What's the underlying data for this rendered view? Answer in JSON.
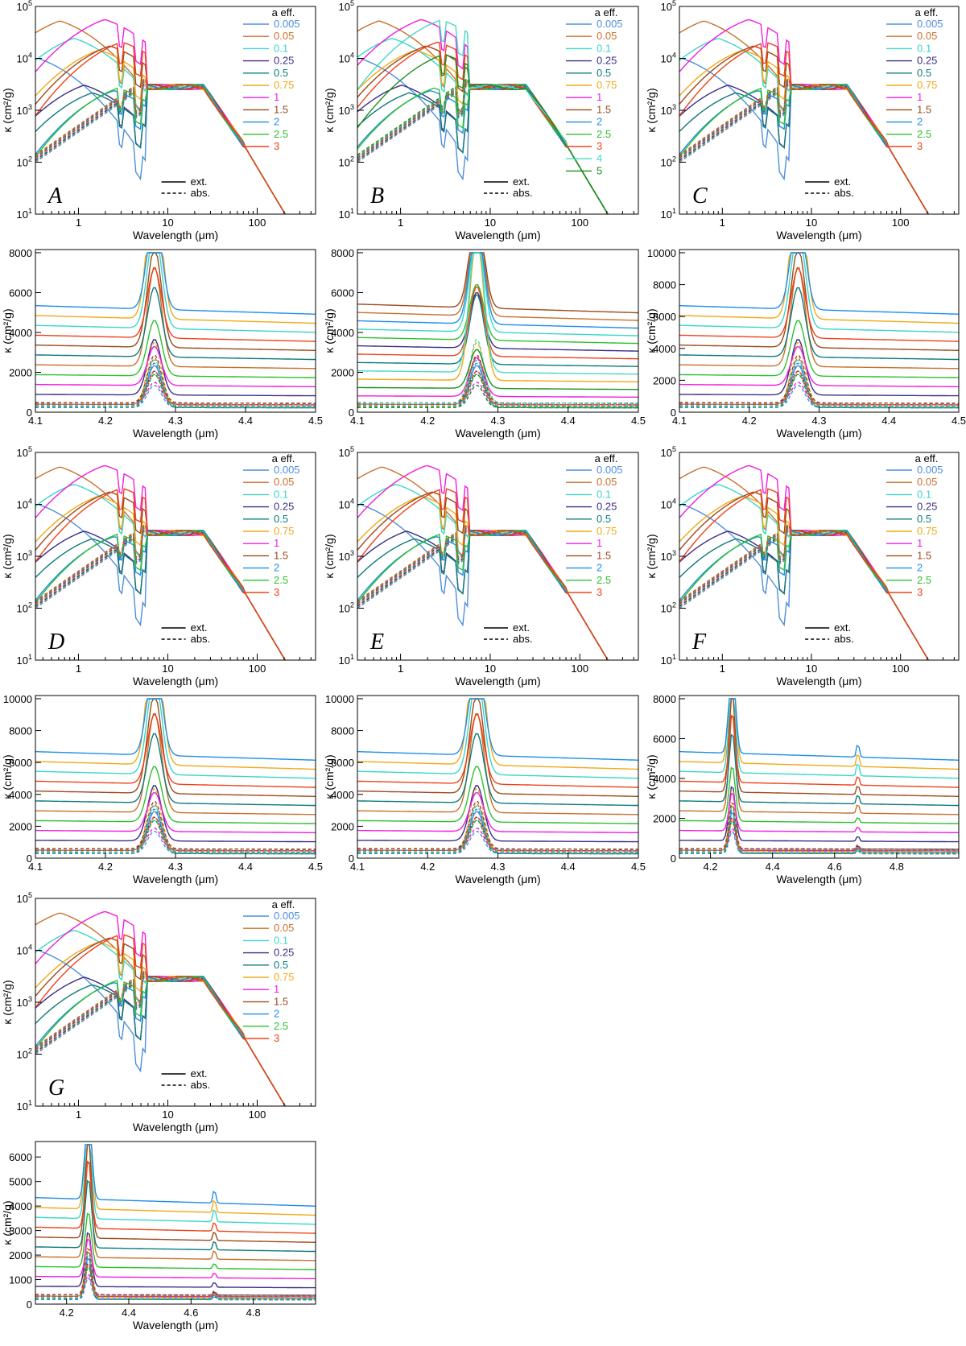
{
  "panels": [
    {
      "id": "A-log",
      "type": "log",
      "letter": "A",
      "xlabel": "Wavelength (μm)",
      "ylabel": "κ (cm²/g)",
      "legend_title": "a eff.",
      "sizes": [
        "0.005",
        "0.05",
        "0.1",
        "0.25",
        "0.5",
        "0.75",
        "1",
        "1.5",
        "2",
        "2.5",
        "3"
      ],
      "line_legend": [
        "ext.",
        "abs."
      ]
    },
    {
      "id": "B-log",
      "type": "log",
      "letter": "B",
      "xlabel": "Wavelength (μm)",
      "ylabel": "κ (cm²/g)",
      "legend_title": "a eff.",
      "sizes": [
        "0.005",
        "0.05",
        "0.1",
        "0.25",
        "0.5",
        "0.75",
        "1",
        "1.5",
        "2",
        "2.5",
        "3",
        "4",
        "5"
      ],
      "line_legend": [
        "ext.",
        "abs."
      ]
    },
    {
      "id": "C-log",
      "type": "log",
      "letter": "C",
      "xlabel": "Wavelength (μm)",
      "ylabel": "κ (cm²/g)",
      "legend_title": "a eff.",
      "sizes": [
        "0.005",
        "0.05",
        "0.1",
        "0.25",
        "0.5",
        "0.75",
        "1",
        "1.5",
        "2",
        "2.5",
        "3"
      ],
      "line_legend": [
        "ext.",
        "abs."
      ]
    },
    {
      "id": "A-zoom",
      "type": "zoom",
      "xlabel": "Wavelength (μm)",
      "ylabel": "κ (cm²/g)",
      "xmin": 4.1,
      "xmax": 4.5,
      "ymax": 8000,
      "xticks": [
        "4.1",
        "4.2",
        "4.3",
        "4.4",
        "4.5"
      ],
      "yticks": [
        "0",
        "2000",
        "4000",
        "6000",
        "8000"
      ]
    },
    {
      "id": "B-zoom",
      "type": "zoom",
      "xlabel": "Wavelength (μm)",
      "ylabel": "κ (cm²/g)",
      "xmin": 4.1,
      "xmax": 4.5,
      "ymax": 8000,
      "xticks": [
        "4.1",
        "4.2",
        "4.3",
        "4.4",
        "4.5"
      ],
      "yticks": [
        "0",
        "2000",
        "4000",
        "6000",
        "8000"
      ]
    },
    {
      "id": "C-zoom",
      "type": "zoom",
      "xlabel": "Wavelength (μm)",
      "ylabel": "κ (cm²/g)",
      "xmin": 4.1,
      "xmax": 4.5,
      "ymax": 10000,
      "xticks": [
        "4.1",
        "4.2",
        "4.3",
        "4.4",
        "4.5"
      ],
      "yticks": [
        "0",
        "2000",
        "4000",
        "6000",
        "8000",
        "10000"
      ]
    },
    {
      "id": "D-log",
      "type": "log",
      "letter": "D",
      "xlabel": "Wavelength (μm)",
      "ylabel": "κ (cm²/g)",
      "legend_title": "a eff.",
      "sizes": [
        "0.005",
        "0.05",
        "0.1",
        "0.25",
        "0.5",
        "0.75",
        "1",
        "1.5",
        "2",
        "2.5",
        "3"
      ],
      "line_legend": [
        "ext.",
        "abs."
      ]
    },
    {
      "id": "E-log",
      "type": "log",
      "letter": "E",
      "xlabel": "Wavelength (μm)",
      "ylabel": "κ (cm²/g)",
      "legend_title": "a eff.",
      "sizes": [
        "0.005",
        "0.05",
        "0.1",
        "0.25",
        "0.5",
        "0.75",
        "1",
        "1.5",
        "2",
        "2.5",
        "3"
      ],
      "line_legend": [
        "ext.",
        "abs."
      ]
    },
    {
      "id": "F-log",
      "type": "log",
      "letter": "F",
      "xlabel": "Wavelength (μm)",
      "ylabel": "κ (cm²/g)",
      "legend_title": "a eff.",
      "sizes": [
        "0.005",
        "0.05",
        "0.1",
        "0.25",
        "0.5",
        "0.75",
        "1",
        "1.5",
        "2",
        "2.5",
        "3"
      ],
      "line_legend": [
        "ext.",
        "abs."
      ]
    },
    {
      "id": "D-zoom",
      "type": "zoom",
      "xlabel": "Wavelength (μm)",
      "ylabel": "κ (cm²/g)",
      "xmin": 4.1,
      "xmax": 4.5,
      "ymax": 10000,
      "xticks": [
        "4.1",
        "4.2",
        "4.3",
        "4.4",
        "4.5"
      ],
      "yticks": [
        "0",
        "2000",
        "4000",
        "6000",
        "8000",
        "10000"
      ]
    },
    {
      "id": "E-zoom",
      "type": "zoom",
      "xlabel": "Wavelength (μm)",
      "ylabel": "κ (cm²/g)",
      "xmin": 4.1,
      "xmax": 4.5,
      "ymax": 10000,
      "xticks": [
        "4.1",
        "4.2",
        "4.3",
        "4.4",
        "4.5"
      ],
      "yticks": [
        "0",
        "2000",
        "4000",
        "6000",
        "8000",
        "10000"
      ]
    },
    {
      "id": "F-zoom",
      "type": "zoom",
      "xlabel": "Wavelength (μm)",
      "ylabel": "κ (cm²/g)",
      "xmin": 4.1,
      "xmax": 5.0,
      "ymax": 8000,
      "xticks": [
        "4.2",
        "4.4",
        "4.6",
        "4.8"
      ],
      "yticks": [
        "0",
        "2000",
        "4000",
        "6000",
        "8000"
      ]
    },
    {
      "id": "G-log",
      "type": "log",
      "letter": "G",
      "xlabel": "Wavelength (μm)",
      "ylabel": "κ (cm²/g)",
      "legend_title": "a eff.",
      "sizes": [
        "0.005",
        "0.05",
        "0.1",
        "0.25",
        "0.5",
        "0.75",
        "1",
        "1.5",
        "2",
        "2.5",
        "3"
      ],
      "line_legend": [
        "ext.",
        "abs."
      ]
    },
    {
      "id": "G-zoom",
      "type": "zoom",
      "xlabel": "Wavelength (μm)",
      "ylabel": "κ (cm²/g)",
      "xmin": 4.1,
      "xmax": 5.0,
      "ymax": 6500,
      "xticks": [
        "4.2",
        "4.4",
        "4.6",
        "4.8"
      ],
      "yticks": [
        "0",
        "1000",
        "2000",
        "3000",
        "4000",
        "5000",
        "6000"
      ]
    }
  ],
  "log_axes": {
    "xticks": [
      "1",
      "10",
      "100"
    ],
    "yticks": [
      {
        "base": "10",
        "exp": "1"
      },
      {
        "base": "10",
        "exp": "2"
      },
      {
        "base": "10",
        "exp": "3"
      },
      {
        "base": "10",
        "exp": "4"
      },
      {
        "base": "10",
        "exp": "5"
      }
    ]
  },
  "size_colors": {
    "0.005": "#4e8fdc",
    "0.05": "#c8702b",
    "0.1": "#3ad6c8",
    "0.25": "#3c2f86",
    "0.5": "#0f7a7a",
    "0.75": "#f2a917",
    "1": "#f01ee0",
    "1.5": "#9c4a1c",
    "2": "#1f8ee8",
    "2.5": "#2fbf2f",
    "3": "#f0421b",
    "4": "#46d9c4",
    "5": "#1f8f1f"
  }
}
